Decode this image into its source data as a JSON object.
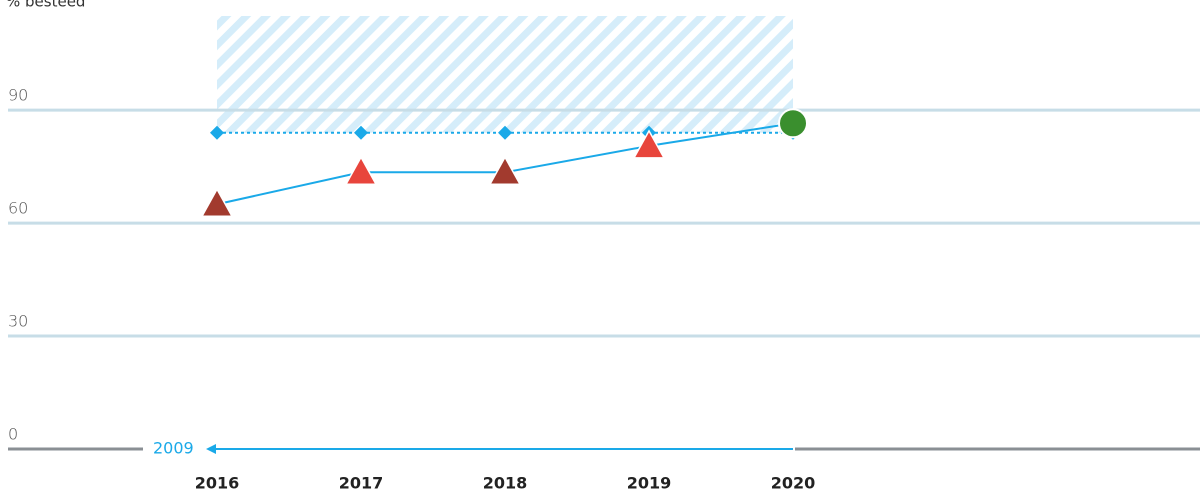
{
  "chart_data": {
    "type": "line",
    "ylabel": "% besteed",
    "categories": [
      "2016",
      "2017",
      "2018",
      "2019",
      "2020"
    ],
    "ylim": [
      0,
      115
    ],
    "yticks": [
      0,
      30,
      60,
      90
    ],
    "grid": true,
    "annotation": "2009",
    "series": [
      {
        "color": "#1aa9e8",
        "values": [
          84,
          84,
          84,
          84,
          84
        ],
        "dashed": true,
        "marker": "diamond",
        "hatched_above": true
      },
      {
        "color": "#1aa9e8",
        "values": [
          65,
          73.5,
          73.5,
          80.5,
          86.5
        ],
        "marker": "triangle",
        "marker_colors": [
          "#a23a2e",
          "#e8453c",
          "#a23a2e",
          "#e8453c",
          "#3a8f2e"
        ],
        "markers": [
          "triangle",
          "triangle",
          "triangle",
          "triangle",
          "circle"
        ]
      }
    ]
  }
}
